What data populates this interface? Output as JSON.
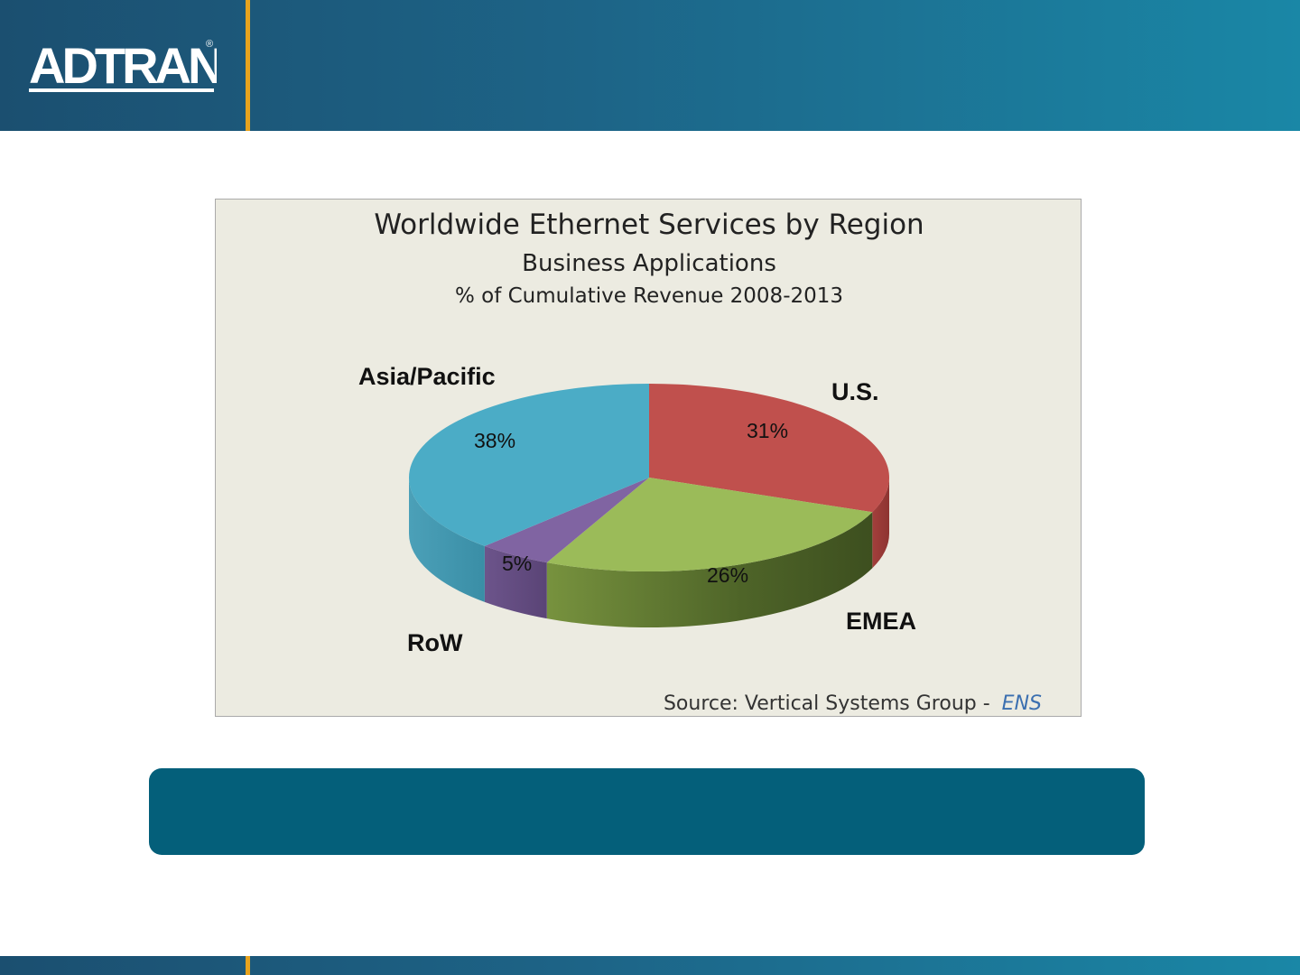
{
  "brand": {
    "logo_text": "ADTRAN",
    "registered_mark": "®"
  },
  "colors": {
    "header_bar": "#1d6487",
    "accent_divider": "#e7a31e",
    "banner": "#045f7a",
    "chart_bg": "#ecebe1"
  },
  "chart_data": {
    "type": "pie",
    "title": "Worldwide Ethernet Services by Region",
    "subtitle": "Business Applications",
    "subtitle2": "% of Cumulative Revenue 2008-2013",
    "source": "Source: Vertical Systems Group -",
    "source_italic": "ENS",
    "three_d": true,
    "slices": [
      {
        "label": "U.S.",
        "value": 31,
        "display": "31%",
        "color": "#c0504d"
      },
      {
        "label": "EMEA",
        "value": 26,
        "display": "26%",
        "color": "#9bbb59"
      },
      {
        "label": "RoW",
        "value": 5,
        "display": "5%",
        "color": "#8064a2"
      },
      {
        "label": "Asia/Pacific",
        "value": 38,
        "display": "38%",
        "color": "#4bacc6"
      }
    ]
  }
}
